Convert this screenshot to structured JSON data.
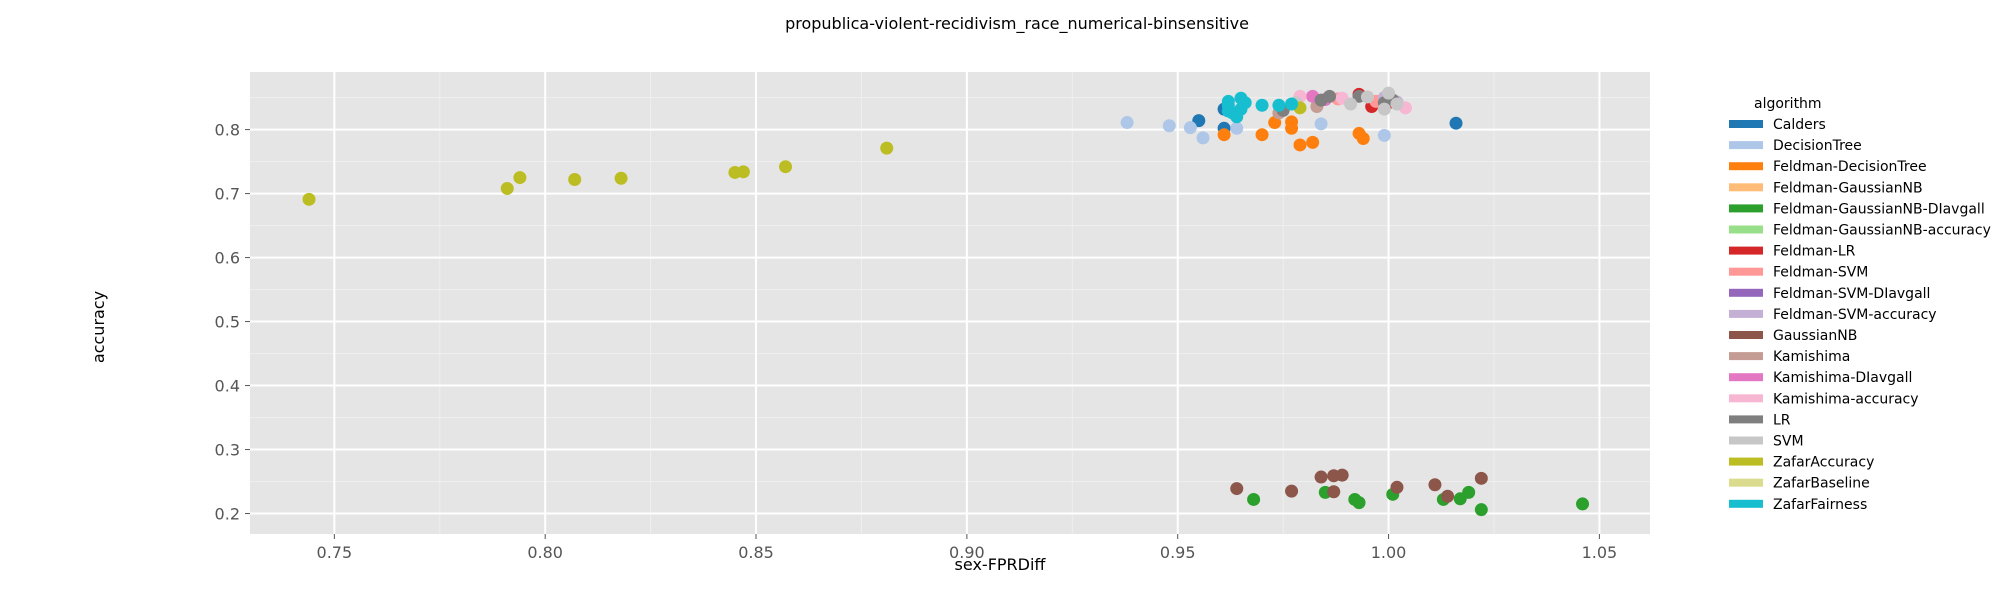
{
  "chart_data": {
    "type": "scatter",
    "title": "propublica-violent-recidivism_race_numerical-binsensitive",
    "xlabel": "sex-FPRDiff",
    "ylabel": "accuracy",
    "xlim": [
      0.73,
      1.062
    ],
    "ylim": [
      0.168,
      0.89
    ],
    "xticks": [
      0.75,
      0.8,
      0.85,
      0.9,
      0.95,
      1.0,
      1.05
    ],
    "xtick_labels": [
      "0.75",
      "0.80",
      "0.85",
      "0.90",
      "0.95",
      "1.00",
      "1.05"
    ],
    "yticks": [
      0.2,
      0.3,
      0.4,
      0.5,
      0.6,
      0.7,
      0.8
    ],
    "ytick_labels": [
      "0.2",
      "0.3",
      "0.4",
      "0.5",
      "0.6",
      "0.7",
      "0.8"
    ],
    "grid": true,
    "legend_title": "algorithm",
    "legend_position": "right",
    "series": [
      {
        "name": "Calders",
        "color": "#1f77b4",
        "points": [
          [
            0.955,
            0.814
          ],
          [
            0.961,
            0.802
          ],
          [
            1.016,
            0.81
          ],
          [
            0.961,
            0.832
          ]
        ]
      },
      {
        "name": "DecisionTree",
        "color": "#aec7e8",
        "points": [
          [
            0.938,
            0.811
          ],
          [
            0.948,
            0.806
          ],
          [
            0.953,
            0.803
          ],
          [
            0.956,
            0.787
          ],
          [
            0.964,
            0.802
          ],
          [
            0.984,
            0.809
          ],
          [
            0.999,
            0.791
          ]
        ]
      },
      {
        "name": "Feldman-DecisionTree",
        "color": "#ff7f0e",
        "points": [
          [
            0.961,
            0.792
          ],
          [
            0.97,
            0.792
          ],
          [
            0.973,
            0.811
          ],
          [
            0.977,
            0.812
          ],
          [
            0.977,
            0.802
          ],
          [
            0.979,
            0.776
          ],
          [
            0.982,
            0.78
          ],
          [
            0.993,
            0.794
          ],
          [
            0.994,
            0.786
          ]
        ]
      },
      {
        "name": "Feldman-GaussianNB",
        "color": "#ffbb78",
        "points": []
      },
      {
        "name": "Feldman-GaussianNB-DIavgall",
        "color": "#2ca02c",
        "points": [
          [
            0.968,
            0.222
          ],
          [
            0.985,
            0.233
          ],
          [
            0.992,
            0.222
          ],
          [
            0.993,
            0.217
          ],
          [
            1.001,
            0.23
          ],
          [
            1.013,
            0.222
          ],
          [
            1.017,
            0.223
          ],
          [
            1.019,
            0.233
          ],
          [
            1.022,
            0.206
          ],
          [
            1.046,
            0.215
          ]
        ]
      },
      {
        "name": "Feldman-GaussianNB-accuracy",
        "color": "#98df8a",
        "points": []
      },
      {
        "name": "Feldman-LR",
        "color": "#d62728",
        "points": [
          [
            0.993,
            0.855
          ],
          [
            0.996,
            0.836
          ],
          [
            1.0,
            0.842
          ]
        ]
      },
      {
        "name": "Feldman-SVM",
        "color": "#ff9896",
        "points": [
          [
            0.988,
            0.848
          ],
          [
            0.997,
            0.844
          ]
        ]
      },
      {
        "name": "Feldman-SVM-DIavgall",
        "color": "#9467bd",
        "points": []
      },
      {
        "name": "Feldman-SVM-accuracy",
        "color": "#c5b0d5",
        "points": [
          [
            0.999,
            0.85
          ],
          [
            1.002,
            0.843
          ]
        ]
      },
      {
        "name": "GaussianNB",
        "color": "#8c564b",
        "points": [
          [
            0.964,
            0.239
          ],
          [
            0.977,
            0.235
          ],
          [
            0.984,
            0.257
          ],
          [
            0.987,
            0.234
          ],
          [
            0.987,
            0.259
          ],
          [
            0.989,
            0.26
          ],
          [
            1.002,
            0.241
          ],
          [
            1.011,
            0.245
          ],
          [
            1.014,
            0.227
          ],
          [
            1.022,
            0.255
          ]
        ]
      },
      {
        "name": "Kamishima",
        "color": "#c49c94",
        "points": [
          [
            0.974,
            0.826
          ],
          [
            0.983,
            0.836
          ]
        ]
      },
      {
        "name": "Kamishima-DIavgall",
        "color": "#e377c2",
        "points": [
          [
            0.982,
            0.852
          ],
          [
            0.985,
            0.847
          ]
        ]
      },
      {
        "name": "Kamishima-accuracy",
        "color": "#f7b6d2",
        "points": [
          [
            0.979,
            0.852
          ],
          [
            0.989,
            0.849
          ],
          [
            1.004,
            0.834
          ]
        ]
      },
      {
        "name": "LR",
        "color": "#7f7f7f",
        "points": [
          [
            0.975,
            0.83
          ],
          [
            0.984,
            0.846
          ],
          [
            0.986,
            0.852
          ],
          [
            0.993,
            0.852
          ],
          [
            0.999,
            0.842
          ],
          [
            1.001,
            0.846
          ]
        ]
      },
      {
        "name": "SVM",
        "color": "#c7c7c7",
        "points": [
          [
            0.978,
            0.842
          ],
          [
            0.991,
            0.84
          ],
          [
            0.995,
            0.851
          ],
          [
            1.0,
            0.857
          ],
          [
            1.002,
            0.84
          ],
          [
            0.999,
            0.832
          ]
        ]
      },
      {
        "name": "ZafarAccuracy",
        "color": "#bcbd22",
        "points": [
          [
            0.744,
            0.691
          ],
          [
            0.791,
            0.708
          ],
          [
            0.794,
            0.725
          ],
          [
            0.807,
            0.722
          ],
          [
            0.818,
            0.724
          ],
          [
            0.845,
            0.733
          ],
          [
            0.847,
            0.734
          ],
          [
            0.857,
            0.742
          ],
          [
            0.881,
            0.771
          ],
          [
            0.979,
            0.834
          ]
        ]
      },
      {
        "name": "ZafarBaseline",
        "color": "#dbdb8d",
        "points": []
      },
      {
        "name": "ZafarFairness",
        "color": "#17becf",
        "points": [
          [
            0.962,
            0.844
          ],
          [
            0.962,
            0.838
          ],
          [
            0.962,
            0.829
          ],
          [
            0.963,
            0.826
          ],
          [
            0.964,
            0.82
          ],
          [
            0.965,
            0.832
          ],
          [
            0.965,
            0.849
          ],
          [
            0.966,
            0.842
          ],
          [
            0.97,
            0.838
          ],
          [
            0.974,
            0.838
          ],
          [
            0.977,
            0.84
          ]
        ]
      }
    ]
  }
}
